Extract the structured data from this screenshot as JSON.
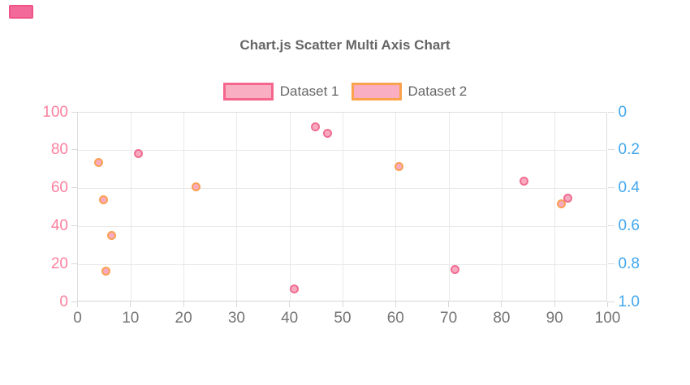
{
  "decor": {
    "top_left_swatch": {
      "fill": "#f3699a",
      "border": "#ee5487"
    }
  },
  "chart_data": {
    "type": "scatter",
    "title": "Chart.js Scatter Multi Axis Chart",
    "grid": true,
    "legend_position": "top",
    "legend": [
      {
        "label": "Dataset 1",
        "border_color": "#f4668c",
        "fill_color": "#f9aec2"
      },
      {
        "label": "Dataset 2",
        "border_color": "#fba24d",
        "fill_color": "#f9aec2"
      }
    ],
    "x_axis": {
      "min": 0,
      "max": 100,
      "ticks": [
        0,
        10,
        20,
        30,
        40,
        50,
        60,
        70,
        80,
        90,
        100
      ],
      "tick_color": "#757575"
    },
    "y_axis_left": {
      "min": 0,
      "max": 100,
      "ticks": [
        100,
        80,
        60,
        40,
        20,
        0
      ],
      "tick_color": "#fc809e"
    },
    "y_axis_right": {
      "min": 0,
      "max": 1,
      "reversed": true,
      "ticks": [
        "0",
        "0.2",
        "0.4",
        "0.6",
        "0.8",
        "1.0"
      ],
      "tick_color": "#42a7ed"
    },
    "series": [
      {
        "name": "Dataset 1",
        "axis": "left",
        "border_color": "#ef6d92",
        "fill_color": "#f8abbe",
        "points": [
          {
            "x": 11.5,
            "y": 78
          },
          {
            "x": 40.9,
            "y": 6.6
          },
          {
            "x": 44.8,
            "y": 92
          },
          {
            "x": 47.2,
            "y": 88.5
          },
          {
            "x": 71.2,
            "y": 16.7
          },
          {
            "x": 84.3,
            "y": 63.4
          },
          {
            "x": 92.5,
            "y": 54.7
          }
        ]
      },
      {
        "name": "Dataset 2",
        "axis": "right",
        "border_color": "#fba052",
        "fill_color": "#f8abbe",
        "points": [
          {
            "x": 4.0,
            "y": 0.265
          },
          {
            "x": 4.9,
            "y": 0.464
          },
          {
            "x": 5.4,
            "y": 0.838
          },
          {
            "x": 6.5,
            "y": 0.653
          },
          {
            "x": 22.4,
            "y": 0.396
          },
          {
            "x": 60.7,
            "y": 0.29
          },
          {
            "x": 91.2,
            "y": 0.484
          }
        ]
      }
    ]
  }
}
